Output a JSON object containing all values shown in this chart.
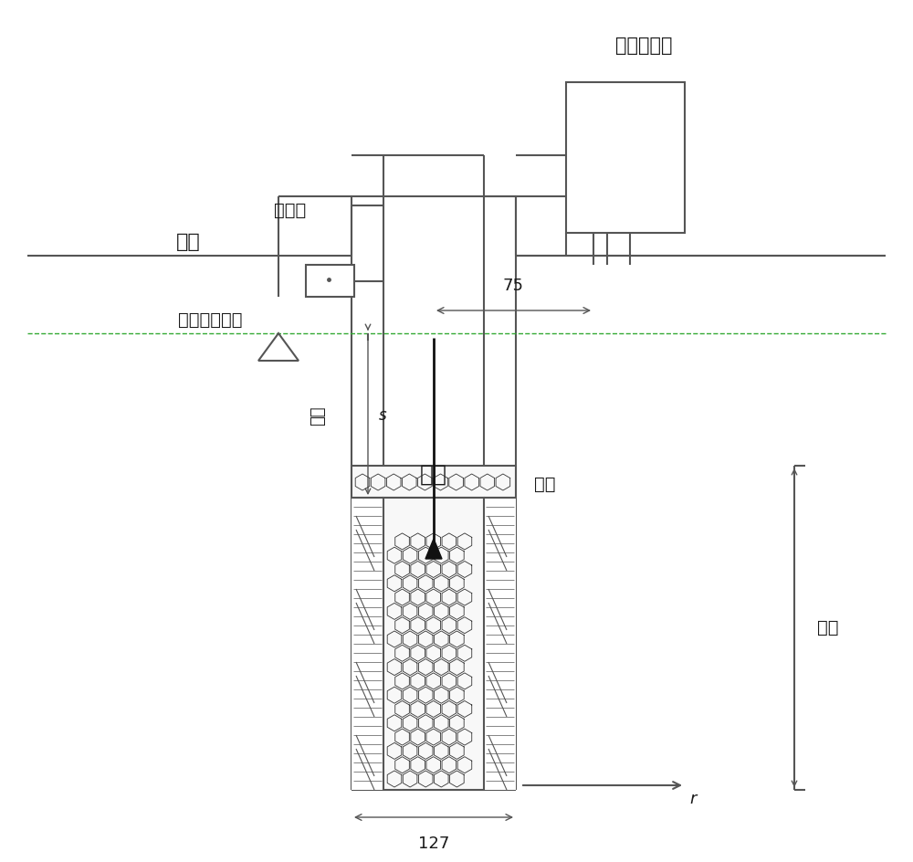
{
  "bg_color": "#ffffff",
  "line_color": "#555555",
  "text_color": "#1a1a1a",
  "label_mariotte": "马利奥特瓶",
  "label_pump": "抽水泵",
  "label_surface": "地表",
  "label_water_level": "稳定地下水位",
  "label_drawdown": "降深",
  "label_s": "s",
  "label_filter_inside": "滤层",
  "label_filter_outside": "滤层",
  "label_test": "试段",
  "label_r": "r",
  "dim_75": "75",
  "dim_127": "127",
  "fig_width": 10.0,
  "fig_height": 9.44
}
